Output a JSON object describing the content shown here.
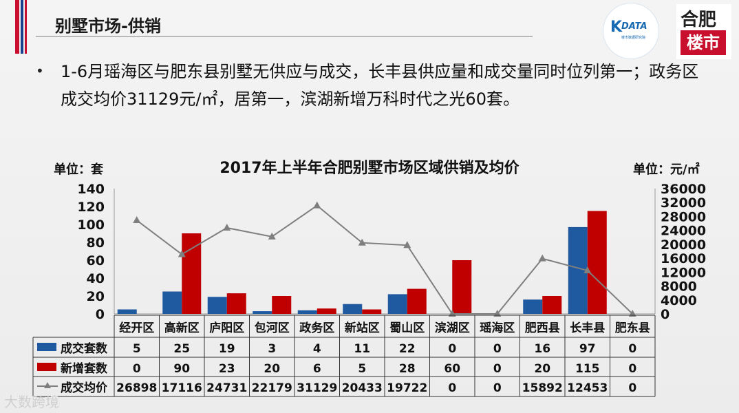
{
  "header": {
    "title": "别墅市场-供销"
  },
  "logos": {
    "left_mark": "K",
    "left_text": "DATA",
    "left_sub": "楼市数据研究院",
    "right_top": "合肥",
    "right_box": "楼市"
  },
  "summary": {
    "bullet_char": "•",
    "text": "1-6月瑶海区与肥东县别墅无供应与成交，长丰县供应量和成交量同时位列第一；政务区成交均价31129元/㎡，居第一，滨湖新增万科时代之光60套。"
  },
  "watermark": "大数跨境",
  "colors": {
    "sold": "#1f5aa0",
    "new": "#c00000",
    "price": "#7f7f7f",
    "accent_red": "#c8102e",
    "accent_blue": "#1b3f8f"
  },
  "chart_data": {
    "type": "bar",
    "title": "2017年上半年合肥别墅市场区域供销及均价",
    "left_unit": "单位：套",
    "right_unit": "单位：元/㎡",
    "categories": [
      "经开区",
      "高新区",
      "庐阳区",
      "包河区",
      "政务区",
      "新站区",
      "蜀山区",
      "滨湖区",
      "瑶海区",
      "肥西县",
      "长丰县",
      "肥东县"
    ],
    "series": [
      {
        "name": "成交套数",
        "type": "bar",
        "axis": "left",
        "values": [
          5,
          25,
          19,
          3,
          4,
          11,
          22,
          0,
          0,
          16,
          97,
          0
        ]
      },
      {
        "name": "新增套数",
        "type": "bar",
        "axis": "left",
        "values": [
          0,
          90,
          23,
          20,
          6,
          5,
          28,
          60,
          0,
          20,
          115,
          0
        ]
      },
      {
        "name": "成交均价",
        "type": "line",
        "axis": "right",
        "values": [
          26898,
          17116,
          24731,
          22179,
          31129,
          20433,
          19722,
          0,
          0,
          15892,
          12453,
          0
        ]
      }
    ],
    "ylim_left": [
      0,
      140
    ],
    "yticks_left": [
      0,
      20,
      40,
      60,
      80,
      100,
      120,
      140
    ],
    "ylim_right": [
      0,
      36000
    ],
    "yticks_right": [
      0,
      4000,
      8000,
      12000,
      16000,
      20000,
      24000,
      28000,
      32000,
      36000
    ],
    "grid": false,
    "legend": "table-below"
  }
}
